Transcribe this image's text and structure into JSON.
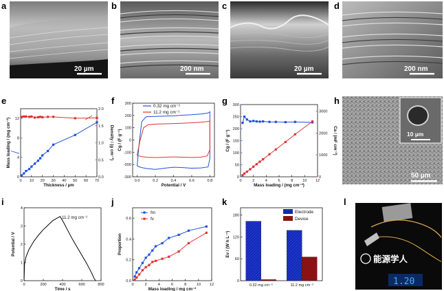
{
  "panel_labels": {
    "a": "a",
    "b": "b",
    "c": "c",
    "d": "d",
    "e": "e",
    "f": "f",
    "g": "g",
    "h": "h",
    "i": "i",
    "j": "j",
    "k": "k",
    "l": "l"
  },
  "scale_bars": {
    "a": "20 µm",
    "b": "200 nm",
    "c": "20 µm",
    "d": "200 nm",
    "h_main": "50 µm",
    "h_inset": "10 µm"
  },
  "watermark": "能源学人",
  "colors": {
    "blue": "#1f4fe0",
    "red": "#e03030",
    "navy": "#1228b8",
    "darkred": "#8a1212"
  },
  "chart_data": [
    {
      "panel": "e",
      "type": "line",
      "xlabel": "Thickness / µm",
      "ylabel": "Mass loading / (mg cm⁻²)",
      "y2label": "Density / (g cm⁻³)",
      "xlim": [
        0,
        70
      ],
      "ylim": [
        0,
        14
      ],
      "y2lim": [
        0,
        2.0
      ],
      "xticks": [
        "0",
        "10",
        "20",
        "30",
        "40",
        "50",
        "60",
        "70"
      ],
      "yticks": [
        "0",
        "4",
        "8",
        "12"
      ],
      "y2ticks": [
        "0.0",
        "0.5",
        "1.0",
        "1.5",
        "2.0"
      ],
      "series": [
        {
          "name": "Mass loading",
          "axis": "left",
          "color": "blue",
          "x": [
            1,
            3,
            5,
            8,
            10,
            13,
            16,
            18,
            20,
            25,
            30,
            50,
            70
          ],
          "y": [
            0.3,
            0.7,
            1.2,
            1.6,
            2.1,
            2.7,
            3.3,
            3.8,
            4.4,
            5.3,
            6.6,
            8.6,
            11.2
          ]
        },
        {
          "name": "Density",
          "axis": "right",
          "color": "red",
          "x": [
            1,
            3,
            5,
            8,
            10,
            13,
            16,
            18,
            20,
            25,
            30,
            50,
            70
          ],
          "y": [
            1.76,
            1.77,
            1.77,
            1.76,
            1.77,
            1.74,
            1.75,
            1.76,
            1.75,
            1.76,
            1.76,
            1.72,
            1.73
          ]
        }
      ]
    },
    {
      "panel": "f",
      "type": "line",
      "xlabel": "Potential / V",
      "ylabel": "Cg / (F g⁻¹)",
      "xlim": [
        -0.05,
        0.85
      ],
      "ylim": [
        -300,
        300
      ],
      "xticks": [
        "0.0",
        "0.2",
        "0.4",
        "0.6",
        "0.8"
      ],
      "yticks": [
        "-300",
        "-200",
        "-100",
        "0",
        "100",
        "200",
        "300"
      ],
      "series": [
        {
          "name": "0.32 mg cm⁻²",
          "color": "blue",
          "x": [
            0,
            0.02,
            0.05,
            0.1,
            0.2,
            0.3,
            0.4,
            0.5,
            0.6,
            0.7,
            0.78,
            0.8,
            0.8,
            0.78,
            0.7,
            0.6,
            0.5,
            0.4,
            0.3,
            0.2,
            0.1,
            0.05,
            0.02,
            0,
            0
          ],
          "y": [
            -205,
            -40,
            150,
            190,
            192,
            195,
            197,
            202,
            206,
            212,
            220,
            230,
            -150,
            -220,
            -228,
            -230,
            -225,
            -222,
            -230,
            -240,
            -232,
            -225,
            -218,
            -210,
            -205
          ]
        },
        {
          "name": "11.2 mg cm⁻²",
          "color": "red",
          "x": [
            0,
            0.03,
            0.07,
            0.12,
            0.2,
            0.3,
            0.4,
            0.5,
            0.6,
            0.7,
            0.77,
            0.8,
            0.8,
            0.77,
            0.7,
            0.6,
            0.5,
            0.4,
            0.3,
            0.2,
            0.1,
            0.05,
            0.02,
            0,
            0
          ],
          "y": [
            -120,
            -10,
            100,
            125,
            130,
            132,
            134,
            137,
            140,
            145,
            150,
            155,
            -80,
            -130,
            -140,
            -142,
            -140,
            -138,
            -140,
            -143,
            -140,
            -135,
            -130,
            -125,
            -120
          ]
        }
      ]
    },
    {
      "panel": "g",
      "type": "line",
      "xlabel": "Mass loading / (mg cm⁻²)",
      "ylabel": "Cg / (F g⁻¹)",
      "y2label": "Ca / (mF cm⁻²)",
      "xlim": [
        0,
        12
      ],
      "ylim": [
        0,
        300
      ],
      "y2lim": [
        0,
        3300
      ],
      "xticks": [
        "0",
        "2",
        "4",
        "6",
        "8",
        "10",
        "12"
      ],
      "yticks": [
        "0",
        "50",
        "100",
        "150",
        "200",
        "250",
        "300"
      ],
      "y2ticks": [
        "0",
        "1000",
        "2000",
        "3000"
      ],
      "series": [
        {
          "name": "Cg",
          "axis": "left",
          "color": "blue",
          "x": [
            0.32,
            0.6,
            1.0,
            1.5,
            2.0,
            2.5,
            3.0,
            3.5,
            4.5,
            5.5,
            7.0,
            8.5,
            11.2
          ],
          "y": [
            224,
            250,
            238,
            230,
            232,
            230,
            229,
            230,
            228,
            228,
            227,
            228,
            226
          ]
        },
        {
          "name": "Ca",
          "axis": "right",
          "color": "red",
          "x": [
            0.32,
            0.6,
            1.0,
            1.5,
            2.0,
            2.5,
            3.0,
            3.5,
            4.5,
            5.5,
            7.0,
            8.5,
            11.2
          ],
          "y": [
            72,
            150,
            235,
            345,
            460,
            575,
            690,
            800,
            1030,
            1250,
            1590,
            1940,
            2530
          ]
        }
      ]
    },
    {
      "panel": "i",
      "type": "line",
      "xlabel": "Time / s",
      "ylabel": "Potential / V",
      "annotation": "11.2 mg cm⁻²",
      "xlim": [
        0,
        800
      ],
      "ylim": [
        0,
        4
      ],
      "xticks": [
        "0",
        "200",
        "400",
        "600",
        "800"
      ],
      "yticks": [
        "0",
        "1",
        "2",
        "3",
        "4"
      ],
      "series": [
        {
          "name": "GCD",
          "color": "black",
          "x": [
            0,
            5,
            20,
            50,
            100,
            150,
            200,
            250,
            300,
            350,
            375,
            400,
            450,
            500,
            550,
            600,
            650,
            700,
            730,
            745
          ],
          "y": [
            0,
            0.9,
            1.3,
            1.7,
            2.15,
            2.5,
            2.8,
            3.05,
            3.3,
            3.45,
            3.52,
            3.3,
            2.8,
            2.3,
            1.85,
            1.4,
            0.95,
            0.45,
            0.1,
            0
          ]
        }
      ]
    },
    {
      "panel": "j",
      "type": "line",
      "xlabel": "Mass loading / mg cm⁻²",
      "ylabel": "Proportion",
      "xlim": [
        0,
        12
      ],
      "ylim": [
        0,
        0.7
      ],
      "xticks": [
        "0",
        "2",
        "4",
        "6",
        "8",
        "10",
        "12"
      ],
      "yticks": [
        "0.0",
        "0.2",
        "0.4",
        "0.6"
      ],
      "series": [
        {
          "name": "fm",
          "color": "blue",
          "x": [
            0.32,
            0.6,
            1.0,
            1.5,
            2.0,
            2.5,
            3.0,
            3.5,
            4.5,
            5.5,
            7.0,
            8.5,
            11.2
          ],
          "y": [
            0.04,
            0.08,
            0.12,
            0.17,
            0.22,
            0.25,
            0.29,
            0.33,
            0.36,
            0.41,
            0.44,
            0.48,
            0.52
          ]
        },
        {
          "name": "fv",
          "color": "red",
          "x": [
            0.32,
            0.6,
            1.0,
            1.5,
            2.0,
            2.5,
            3.0,
            3.5,
            4.5,
            5.5,
            7.0,
            8.5,
            11.2
          ],
          "y": [
            0.01,
            0.03,
            0.06,
            0.1,
            0.13,
            0.15,
            0.18,
            0.19,
            0.21,
            0.23,
            0.28,
            0.36,
            0.46
          ]
        }
      ]
    },
    {
      "panel": "k",
      "type": "bar",
      "ylabel": "Ev / (W h L⁻¹)",
      "categories": [
        "0.32 mg cm⁻²",
        "11.2 mg cm⁻²"
      ],
      "ylim": [
        0,
        200
      ],
      "yticks": [
        "0",
        "60",
        "120",
        "180"
      ],
      "series": [
        {
          "name": "Electrode",
          "color": "navy",
          "values": [
            163,
            138
          ]
        },
        {
          "name": "Device",
          "color": "darkred",
          "values": [
            3,
            65
          ]
        }
      ]
    }
  ]
}
